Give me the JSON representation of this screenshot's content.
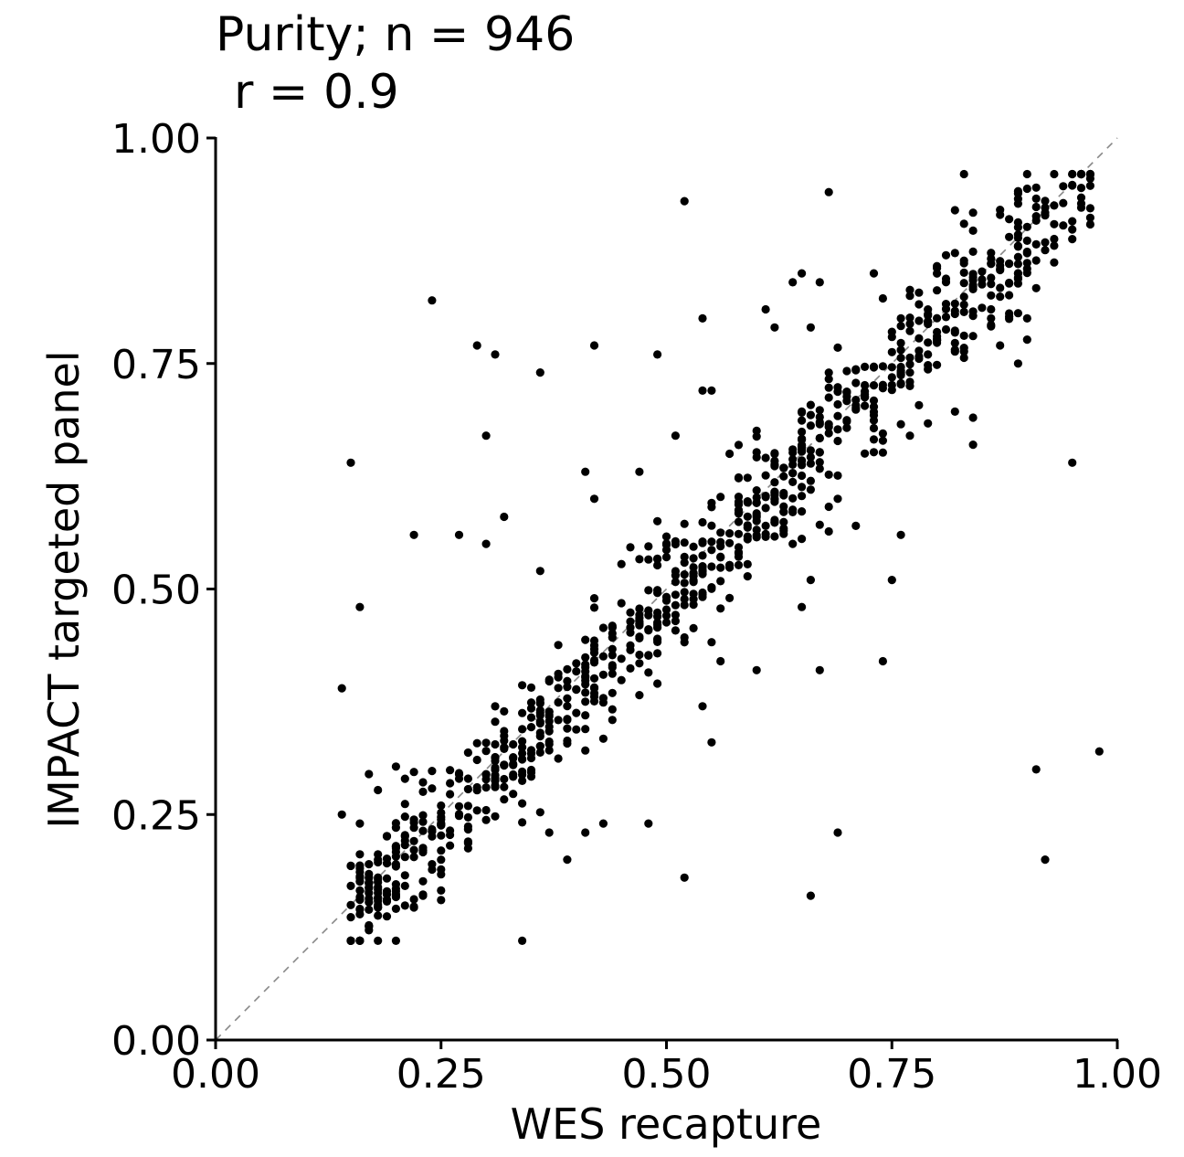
{
  "chart_data": {
    "type": "scatter",
    "title": "Purity; n = 946",
    "subtitle": "r = 0.9",
    "xlabel": "WES recapture",
    "ylabel": "IMPACT targeted panel",
    "xlim": [
      0,
      1
    ],
    "ylim": [
      0,
      1
    ],
    "xticks": [
      "0.00",
      "0.25",
      "0.50",
      "0.75",
      "1.00"
    ],
    "yticks": [
      "0.00",
      "0.25",
      "0.50",
      "0.75",
      "1.00"
    ],
    "reference_line": "y = x",
    "grid": false,
    "legend": "none",
    "point_color": "#000000",
    "reference_line_color": "#888888",
    "outliers": [
      [
        0.24,
        0.82
      ],
      [
        0.52,
        0.93
      ],
      [
        0.68,
        0.94
      ],
      [
        0.15,
        0.64
      ],
      [
        0.29,
        0.77
      ],
      [
        0.31,
        0.76
      ],
      [
        0.3,
        0.67
      ],
      [
        0.36,
        0.74
      ],
      [
        0.42,
        0.77
      ],
      [
        0.49,
        0.76
      ],
      [
        0.54,
        0.72
      ],
      [
        0.55,
        0.72
      ],
      [
        0.61,
        0.81
      ],
      [
        0.62,
        0.79
      ],
      [
        0.64,
        0.84
      ],
      [
        0.65,
        0.85
      ],
      [
        0.66,
        0.79
      ],
      [
        0.67,
        0.84
      ],
      [
        0.54,
        0.8
      ],
      [
        0.73,
        0.85
      ],
      [
        0.16,
        0.48
      ],
      [
        0.14,
        0.39
      ],
      [
        0.22,
        0.56
      ],
      [
        0.27,
        0.56
      ],
      [
        0.3,
        0.55
      ],
      [
        0.32,
        0.58
      ],
      [
        0.36,
        0.52
      ],
      [
        0.41,
        0.63
      ],
      [
        0.42,
        0.6
      ],
      [
        0.47,
        0.63
      ],
      [
        0.51,
        0.67
      ],
      [
        0.61,
        0.57
      ],
      [
        0.66,
        0.51
      ],
      [
        0.65,
        0.48
      ],
      [
        0.67,
        0.41
      ],
      [
        0.69,
        0.6
      ],
      [
        0.74,
        0.42
      ],
      [
        0.75,
        0.51
      ],
      [
        0.76,
        0.56
      ],
      [
        0.71,
        0.57
      ],
      [
        0.64,
        0.55
      ],
      [
        0.6,
        0.41
      ],
      [
        0.55,
        0.33
      ],
      [
        0.54,
        0.37
      ],
      [
        0.56,
        0.42
      ],
      [
        0.34,
        0.11
      ],
      [
        0.52,
        0.18
      ],
      [
        0.66,
        0.16
      ],
      [
        0.69,
        0.23
      ],
      [
        0.91,
        0.3
      ],
      [
        0.92,
        0.2
      ],
      [
        0.98,
        0.32
      ],
      [
        0.95,
        0.64
      ],
      [
        0.9,
        0.8
      ],
      [
        0.89,
        0.75
      ],
      [
        0.84,
        0.69
      ],
      [
        0.84,
        0.66
      ],
      [
        0.86,
        0.8
      ],
      [
        0.87,
        0.77
      ],
      [
        0.83,
        0.96
      ],
      [
        0.82,
        0.92
      ],
      [
        0.39,
        0.2
      ],
      [
        0.41,
        0.23
      ],
      [
        0.48,
        0.24
      ],
      [
        0.43,
        0.24
      ],
      [
        0.37,
        0.23
      ],
      [
        0.23,
        0.16
      ],
      [
        0.18,
        0.15
      ],
      [
        0.16,
        0.24
      ],
      [
        0.14,
        0.25
      ],
      [
        0.77,
        0.67
      ],
      [
        0.88,
        0.91
      ],
      [
        0.81,
        0.87
      ],
      [
        0.86,
        0.81
      ]
    ],
    "series": [
      {
        "kind": "diagonal_cluster",
        "count": 860,
        "slope": 1.0,
        "intercept": -0.01,
        "spread": 0.04,
        "x_range": [
          0.15,
          0.97
        ]
      }
    ]
  }
}
